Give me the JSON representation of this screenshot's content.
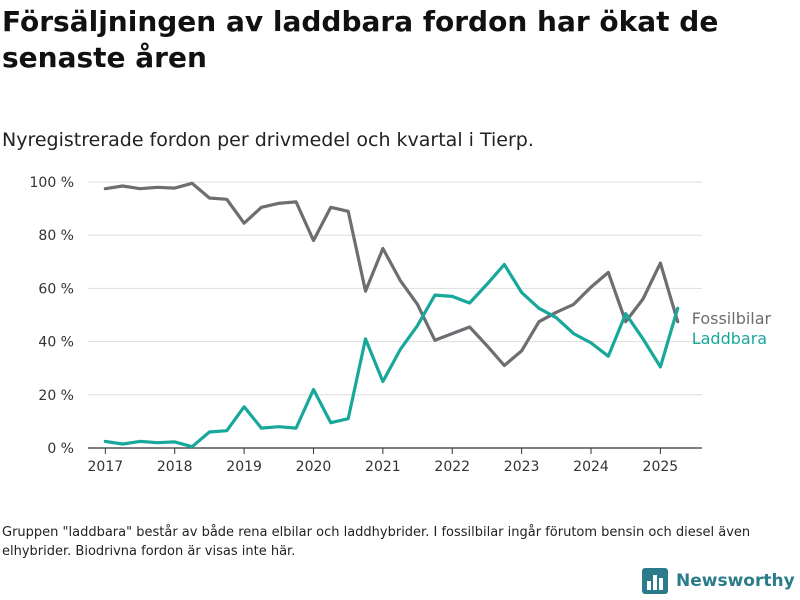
{
  "title": "Försäljningen av laddbara fordon har ökat de senaste åren",
  "subtitle": "Nyregistrerade fordon per drivmedel och kvartal i Tierp.",
  "footnote": "Gruppen \"laddbara\" består av både rena elbilar och laddhybrider. I fossilbilar ingår förutom bensin och diesel även elhybrider. Biodrivna fordon är visas inte här.",
  "brand": {
    "name": "Newsworthy",
    "logo_icon": "bar-chart-logo-icon",
    "color": "#2b7c8a"
  },
  "chart_data": {
    "type": "line",
    "xlabel": "",
    "ylabel": "",
    "xlim": [
      2016.75,
      2025.6
    ],
    "ylim": [
      0,
      100
    ],
    "x_ticks": [
      2017,
      2018,
      2019,
      2020,
      2021,
      2022,
      2023,
      2024,
      2025
    ],
    "y_ticks": [
      0,
      20,
      40,
      60,
      80,
      100
    ],
    "y_tick_labels": [
      "0 %",
      "20 %",
      "40 %",
      "60 %",
      "80 %",
      "100 %"
    ],
    "grid": "horizontal",
    "legend_placement": "right, end of lines",
    "x": [
      2017.0,
      2017.25,
      2017.5,
      2017.75,
      2018.0,
      2018.25,
      2018.5,
      2018.75,
      2019.0,
      2019.25,
      2019.5,
      2019.75,
      2020.0,
      2020.25,
      2020.5,
      2020.75,
      2021.0,
      2021.25,
      2021.5,
      2021.75,
      2022.0,
      2022.25,
      2022.5,
      2022.75,
      2023.0,
      2023.25,
      2023.5,
      2023.75,
      2024.0,
      2024.25,
      2024.5,
      2024.75,
      2025.0,
      2025.25
    ],
    "series": [
      {
        "name": "Fossilbilar",
        "color": "#6d6d72",
        "values": [
          97.5,
          98.5,
          97.5,
          98.0,
          97.7,
          99.5,
          94.0,
          93.5,
          84.5,
          90.5,
          92.0,
          92.5,
          78.0,
          90.5,
          89.0,
          59.0,
          75.0,
          63.0,
          54.0,
          40.5,
          43.0,
          45.5,
          38.5,
          31.0,
          36.5,
          47.5,
          51.0,
          54.0,
          60.5,
          66.0,
          47.5,
          56.0,
          69.5,
          47.5
        ]
      },
      {
        "name": "Laddbara",
        "color": "#17a89b",
        "values": [
          2.5,
          1.5,
          2.5,
          2.0,
          2.3,
          0.5,
          6.0,
          6.5,
          15.5,
          7.5,
          8.0,
          7.5,
          22.0,
          9.5,
          11.0,
          41.0,
          25.0,
          37.0,
          46.0,
          57.5,
          57.0,
          54.5,
          61.5,
          69.0,
          58.5,
          52.5,
          49.0,
          43.0,
          39.5,
          34.5,
          50.5,
          41.0,
          30.5,
          52.5
        ]
      }
    ]
  }
}
